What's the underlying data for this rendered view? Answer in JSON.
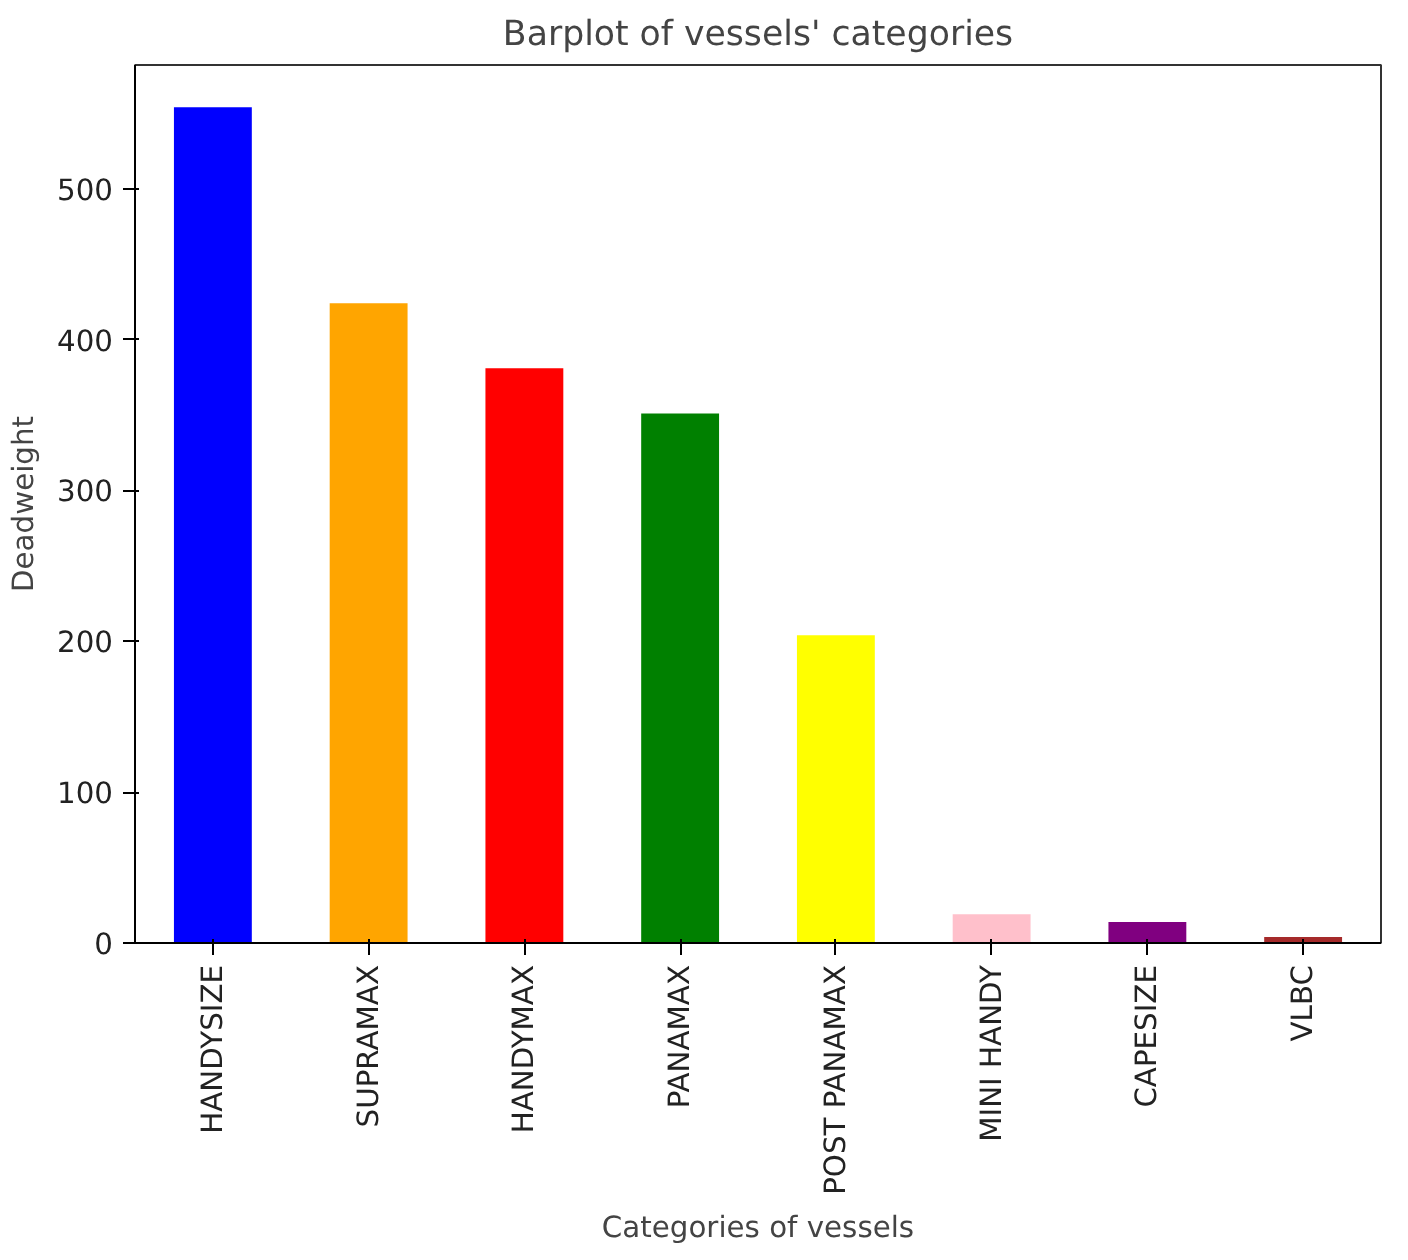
{
  "chart_data": {
    "type": "bar",
    "title": "Barplot of vessels' categories",
    "xlabel": "Categories of vessels",
    "ylabel": "Deadweight",
    "categories": [
      "HANDYSIZE",
      "SUPRAMAX",
      "HANDYMAX",
      "PANAMAX",
      "POST PANAMAX",
      "MINI HANDY",
      "CAPESIZE",
      "VLBC"
    ],
    "values": [
      554,
      424,
      381,
      351,
      204,
      19,
      14,
      4
    ],
    "colors": [
      "#0000ff",
      "#ffa500",
      "#ff0000",
      "#008000",
      "#ffff00",
      "#ffc0cb",
      "#800080",
      "#a52a2a"
    ],
    "ylim": [
      0,
      582
    ],
    "yticks": [
      0,
      100,
      200,
      300,
      400,
      500
    ],
    "grid": false
  }
}
